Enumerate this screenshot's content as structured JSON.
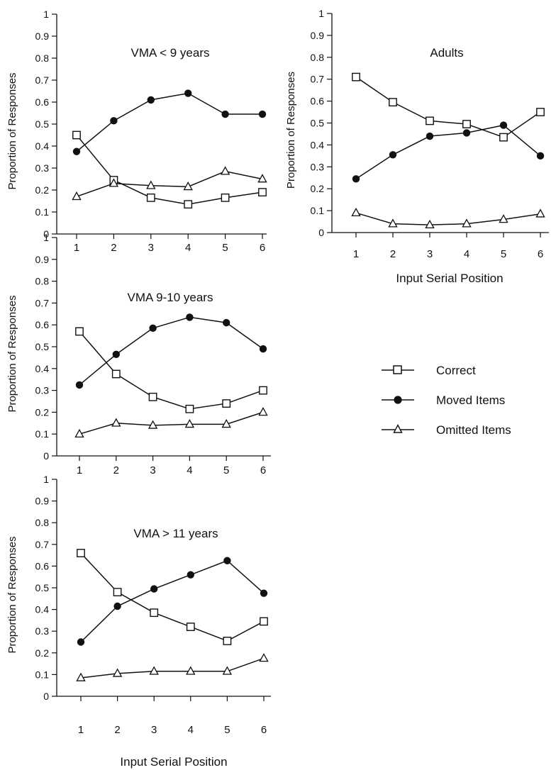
{
  "legend": {
    "items": [
      {
        "label": "Correct",
        "marker": "open-square"
      },
      {
        "label": "Moved Items",
        "marker": "filled-circle"
      },
      {
        "label": "Omitted Items",
        "marker": "open-triangle"
      }
    ]
  },
  "chart_data": [
    {
      "type": "line",
      "title": "VMA < 9 years",
      "xlabel": "",
      "ylabel": "Proportion of Responses",
      "x": [
        1,
        2,
        3,
        4,
        5,
        6
      ],
      "xticks": [
        "1",
        "2",
        "3",
        "4",
        "5",
        "6"
      ],
      "yticks": [
        "0",
        "0.1",
        "0.2",
        "0.3",
        "0.4",
        "0.5",
        "0.6",
        "0.7",
        "0.8",
        "0.9",
        "1"
      ],
      "ylim": [
        0,
        1
      ],
      "grid": false,
      "series": [
        {
          "name": "Correct",
          "marker": "open-square",
          "values": [
            0.45,
            0.245,
            0.165,
            0.135,
            0.165,
            0.19
          ]
        },
        {
          "name": "Moved Items",
          "marker": "filled-circle",
          "values": [
            0.375,
            0.515,
            0.61,
            0.64,
            0.545,
            0.545
          ]
        },
        {
          "name": "Omitted Items",
          "marker": "open-triangle",
          "values": [
            0.17,
            0.23,
            0.22,
            0.215,
            0.285,
            0.25
          ]
        }
      ]
    },
    {
      "type": "line",
      "title": "Adults",
      "xlabel": "Input Serial Position",
      "ylabel": "Proportion of Responses",
      "x": [
        1,
        2,
        3,
        4,
        5,
        6
      ],
      "xticks": [
        "1",
        "2",
        "3",
        "4",
        "5",
        "6"
      ],
      "yticks": [
        "0",
        "0.1",
        "0.2",
        "0.3",
        "0.4",
        "0.5",
        "0.6",
        "0.7",
        "0.8",
        "0.9",
        "1"
      ],
      "ylim": [
        0,
        1
      ],
      "grid": false,
      "series": [
        {
          "name": "Correct",
          "marker": "open-square",
          "values": [
            0.71,
            0.595,
            0.51,
            0.495,
            0.435,
            0.55
          ]
        },
        {
          "name": "Moved Items",
          "marker": "filled-circle",
          "values": [
            0.245,
            0.355,
            0.44,
            0.455,
            0.49,
            0.35
          ]
        },
        {
          "name": "Omitted Items",
          "marker": "open-triangle",
          "values": [
            0.09,
            0.04,
            0.035,
            0.04,
            0.06,
            0.085
          ]
        }
      ]
    },
    {
      "type": "line",
      "title": "VMA 9-10 years",
      "xlabel": "",
      "ylabel": "Proportion of Responses",
      "x": [
        1,
        2,
        3,
        4,
        5,
        6
      ],
      "xticks": [
        "1",
        "2",
        "3",
        "4",
        "5",
        "6"
      ],
      "yticks": [
        "0",
        "0.1",
        "0.2",
        "0.3",
        "0.4",
        "0.5",
        "0.6",
        "0.7",
        "0.8",
        "0.9",
        "1"
      ],
      "ylim": [
        0,
        1
      ],
      "grid": false,
      "series": [
        {
          "name": "Correct",
          "marker": "open-square",
          "values": [
            0.57,
            0.375,
            0.27,
            0.215,
            0.24,
            0.3
          ]
        },
        {
          "name": "Moved Items",
          "marker": "filled-circle",
          "values": [
            0.325,
            0.465,
            0.585,
            0.635,
            0.61,
            0.49
          ]
        },
        {
          "name": "Omitted Items",
          "marker": "open-triangle",
          "values": [
            0.1,
            0.15,
            0.14,
            0.145,
            0.145,
            0.2
          ]
        }
      ]
    },
    {
      "type": "line",
      "title": "VMA > 11 years",
      "xlabel": "Input Serial Position",
      "ylabel": "Proportion of Responses",
      "x": [
        1,
        2,
        3,
        4,
        5,
        6
      ],
      "xticks": [
        "1",
        "2",
        "3",
        "4",
        "5",
        "6"
      ],
      "yticks": [
        "0",
        "0.1",
        "0.2",
        "0.3",
        "0.4",
        "0.5",
        "0.6",
        "0.7",
        "0.8",
        "0.9",
        "1"
      ],
      "ylim": [
        0,
        1
      ],
      "grid": false,
      "series": [
        {
          "name": "Correct",
          "marker": "open-square",
          "values": [
            0.66,
            0.48,
            0.385,
            0.32,
            0.255,
            0.345
          ]
        },
        {
          "name": "Moved Items",
          "marker": "filled-circle",
          "values": [
            0.25,
            0.415,
            0.495,
            0.56,
            0.625,
            0.475
          ]
        },
        {
          "name": "Omitted Items",
          "marker": "open-triangle",
          "values": [
            0.085,
            0.105,
            0.115,
            0.115,
            0.115,
            0.175
          ]
        }
      ]
    }
  ]
}
